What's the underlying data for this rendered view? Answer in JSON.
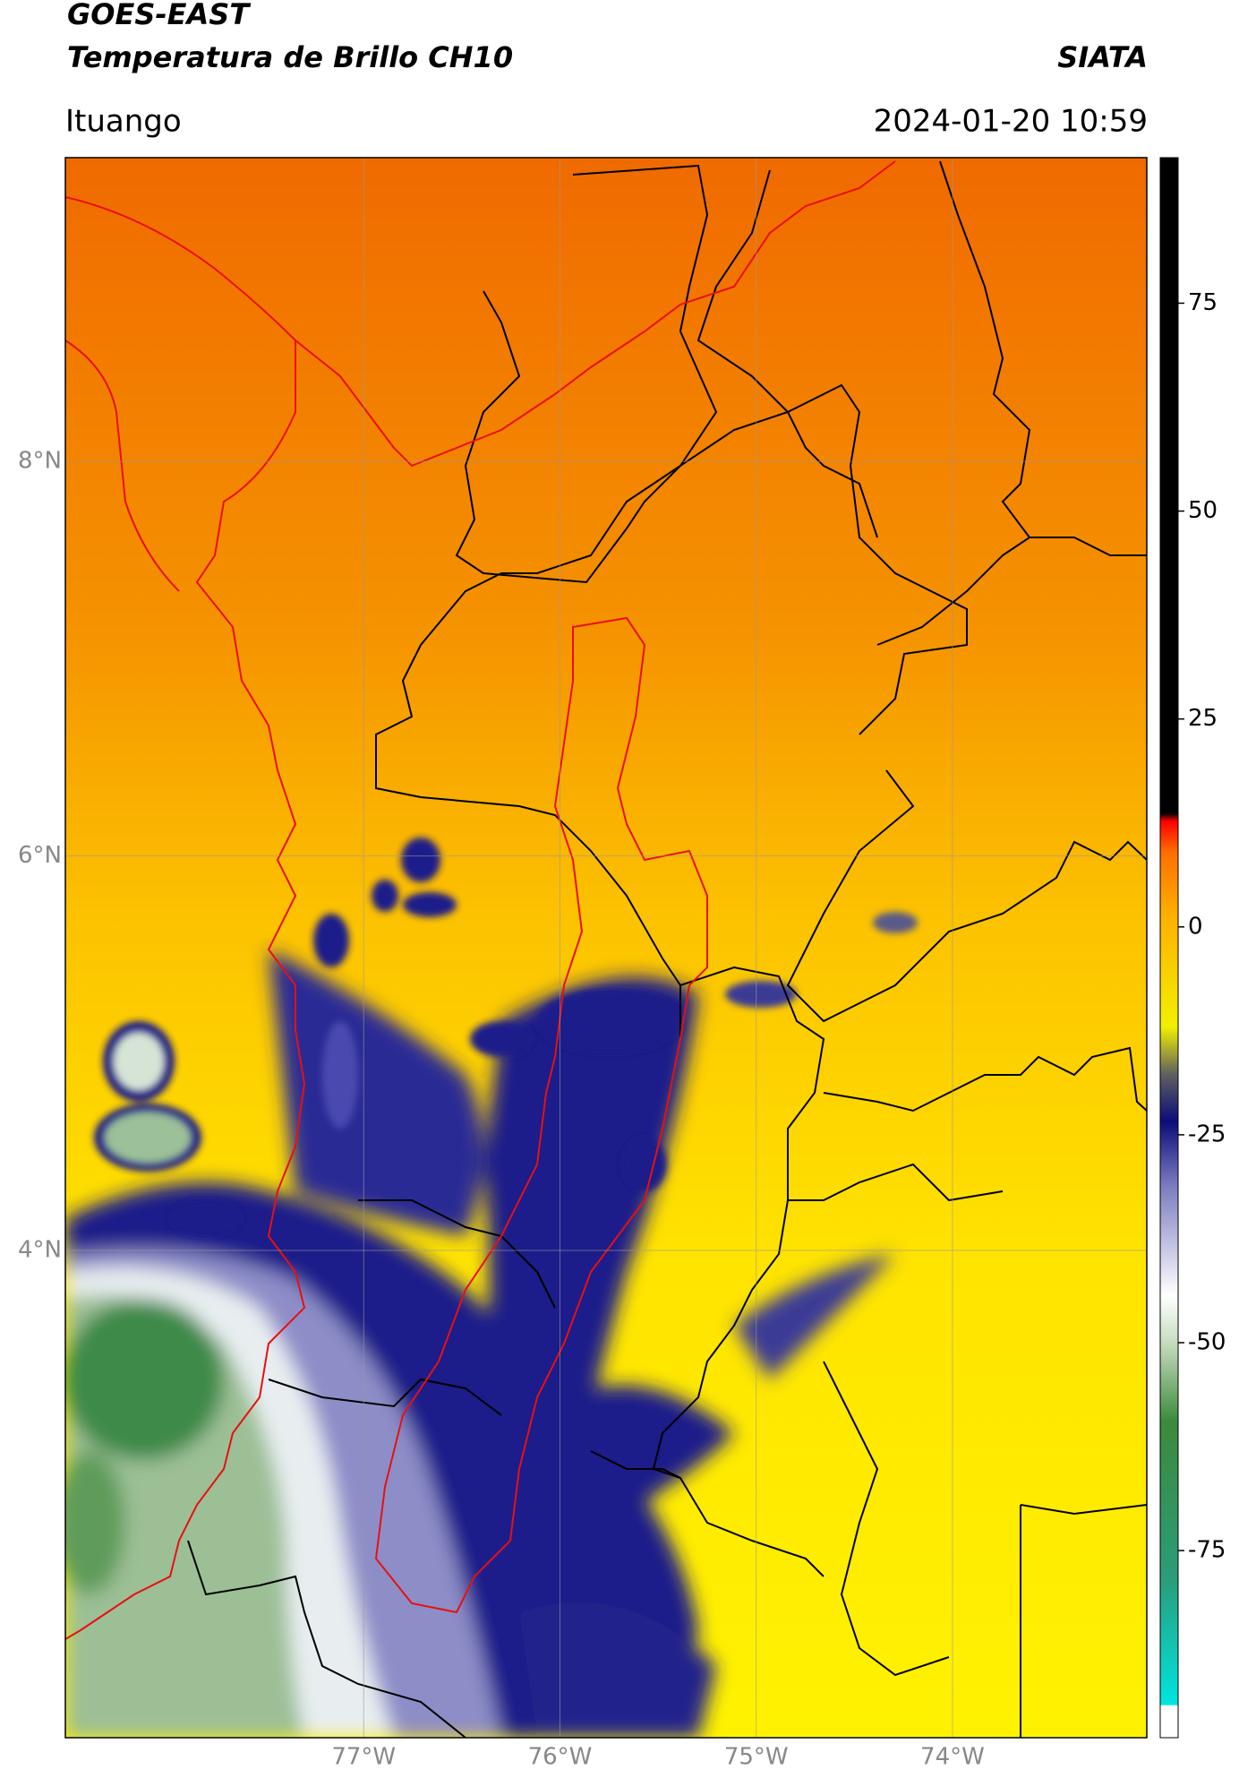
{
  "header": {
    "title": "GOES-EAST",
    "subtitle": "Temperatura de Brillo CH10",
    "brand": "SIATA",
    "region": "Ituango",
    "timestamp": "2024-01-20 10:59"
  },
  "map": {
    "type": "map",
    "xlim": [
      -78.52,
      -73.01
    ],
    "ylim": [
      1.53,
      9.54
    ],
    "xticks": [
      {
        "value": -77,
        "label": "77°W"
      },
      {
        "value": -76,
        "label": "76°W"
      },
      {
        "value": -75,
        "label": "75°W"
      },
      {
        "value": -74,
        "label": "74°W"
      }
    ],
    "yticks": [
      {
        "value": 8,
        "label": "8°N"
      },
      {
        "value": 6,
        "label": "6°N"
      },
      {
        "value": 4,
        "label": "4°N"
      }
    ],
    "grid": true
  },
  "colorbar": {
    "lim": [
      -97.5,
      92.5
    ],
    "ticks": [
      75,
      50,
      25,
      0,
      -25,
      -50,
      -75
    ]
  }
}
